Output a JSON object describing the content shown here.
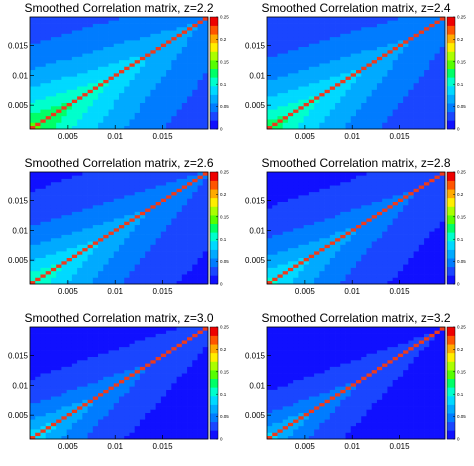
{
  "palette": [
    "#1010ff",
    "#1a46ff",
    "#007cff",
    "#00aaff",
    "#00d9ff",
    "#00ffcc",
    "#00ff66",
    "#55ff00",
    "#aaff00",
    "#ffee00",
    "#ffaa00",
    "#ff5500",
    "#ee0000"
  ],
  "diagonal_color": "#ee3a1c",
  "chart_data": [
    {
      "type": "heatmap",
      "title": "Smoothed Correlation matrix, z=2.2",
      "xlim": [
        0.001,
        0.0198
      ],
      "ylim": [
        0.001,
        0.0198
      ],
      "zlim": [
        0,
        0.25
      ],
      "x_ticks": [
        "0.005",
        "0.01",
        "0.015"
      ],
      "y_ticks": [
        "0.005",
        "0.01",
        "0.015"
      ],
      "colorbar_ticks": [
        "0",
        "0.05",
        "0.1",
        "0.15",
        "0.2",
        "0.25"
      ],
      "diagonal_value": 0.25,
      "decay_length": 0.0105,
      "peak_value": 0.16
    },
    {
      "type": "heatmap",
      "title": "Smoothed Correlation matrix, z=2.4",
      "xlim": [
        0.001,
        0.0198
      ],
      "ylim": [
        0.001,
        0.0198
      ],
      "zlim": [
        0,
        0.25
      ],
      "x_ticks": [
        "0.005",
        "0.01",
        "0.015"
      ],
      "y_ticks": [
        "0.005",
        "0.01",
        "0.015"
      ],
      "colorbar_ticks": [
        "0",
        "0.05",
        "0.1",
        "0.15",
        "0.2",
        "0.25"
      ],
      "diagonal_value": 0.25,
      "decay_length": 0.0095,
      "peak_value": 0.145
    },
    {
      "type": "heatmap",
      "title": "Smoothed Correlation matrix, z=2.6",
      "xlim": [
        0.001,
        0.0198
      ],
      "ylim": [
        0.001,
        0.0198
      ],
      "zlim": [
        0,
        0.25
      ],
      "x_ticks": [
        "0.005",
        "0.01",
        "0.015"
      ],
      "y_ticks": [
        "0.005",
        "0.01",
        "0.015"
      ],
      "colorbar_ticks": [
        "0",
        "0.05",
        "0.1",
        "0.15",
        "0.2",
        "0.25"
      ],
      "diagonal_value": 0.25,
      "decay_length": 0.0085,
      "peak_value": 0.13
    },
    {
      "type": "heatmap",
      "title": "Smoothed Correlation matrix, z=2.8",
      "xlim": [
        0.001,
        0.0198
      ],
      "ylim": [
        0.001,
        0.0198
      ],
      "zlim": [
        0,
        0.25
      ],
      "x_ticks": [
        "0.005",
        "0.01",
        "0.015"
      ],
      "y_ticks": [
        "0.005",
        "0.01",
        "0.015"
      ],
      "colorbar_ticks": [
        "0",
        "0.05",
        "0.1",
        "0.15",
        "0.2",
        "0.25"
      ],
      "diagonal_value": 0.25,
      "decay_length": 0.0075,
      "peak_value": 0.115
    },
    {
      "type": "heatmap",
      "title": "Smoothed Correlation matrix, z=3.0",
      "xlim": [
        0.001,
        0.0198
      ],
      "ylim": [
        0.001,
        0.0198
      ],
      "zlim": [
        0,
        0.25
      ],
      "x_ticks": [
        "0.005",
        "0.01",
        "0.015"
      ],
      "y_ticks": [
        "0.005",
        "0.01",
        "0.015"
      ],
      "colorbar_ticks": [
        "0",
        "0.05",
        "0.1",
        "0.15",
        "0.2",
        "0.25"
      ],
      "diagonal_value": 0.25,
      "decay_length": 0.0062,
      "peak_value": 0.105
    },
    {
      "type": "heatmap",
      "title": "Smoothed Correlation matrix, z=3.2",
      "xlim": [
        0.001,
        0.0198
      ],
      "ylim": [
        0.001,
        0.0198
      ],
      "zlim": [
        0,
        0.25
      ],
      "x_ticks": [
        "0.005",
        "0.01",
        "0.015"
      ],
      "y_ticks": [
        "0.005",
        "0.01",
        "0.015"
      ],
      "colorbar_ticks": [
        "0",
        "0.05",
        "0.1",
        "0.15",
        "0.2",
        "0.25"
      ],
      "diagonal_value": 0.25,
      "decay_length": 0.0052,
      "peak_value": 0.095
    }
  ]
}
